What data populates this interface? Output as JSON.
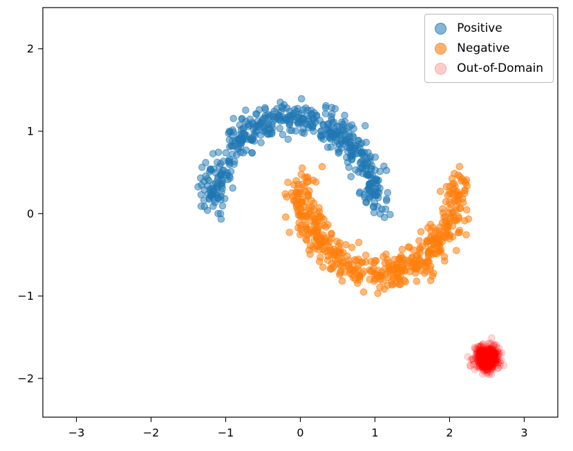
{
  "chart_data": {
    "type": "scatter",
    "title": "",
    "xlabel": "",
    "ylabel": "",
    "xlim": [
      -3.45,
      3.45
    ],
    "ylim": [
      -2.47,
      2.5
    ],
    "x_ticks": [
      -3,
      -2,
      -1,
      0,
      1,
      2,
      3
    ],
    "x_tick_labels": [
      "−3",
      "−2",
      "−1",
      "0",
      "1",
      "2",
      "3"
    ],
    "y_ticks": [
      -2,
      -1,
      0,
      1,
      2
    ],
    "y_tick_labels": [
      "−2",
      "−1",
      "0",
      "1",
      "2"
    ],
    "grid": false,
    "legend": {
      "position": "upper right"
    },
    "seed": 42,
    "marker_radius_px": 4.8,
    "axis_color": "#000000",
    "tick_label_color": "#000000",
    "series": [
      {
        "name": "Positive",
        "color": "#1f77b4",
        "alpha": 0.5,
        "marker": "circle",
        "n": 500,
        "generator": {
          "kind": "arc",
          "cx": -0.09,
          "cy": 0.08,
          "rx": 1.09,
          "ry": 1.08,
          "t0": 0,
          "t1": 3.14159265,
          "noise": 0.1
        },
        "description": "upper crescent from (-1.2, 0.1) to (1.0, 0.1), peak near (0, 1.15)"
      },
      {
        "name": "Negative",
        "color": "#ff7f0e",
        "alpha": 0.55,
        "marker": "circle",
        "n": 500,
        "generator": {
          "kind": "arc",
          "cx": 1.05,
          "cy": 0.42,
          "rx": 1.05,
          "ry": -1.15,
          "t0": 0,
          "t1": 3.14159265,
          "noise": 0.1
        },
        "description": "lower crescent from (0.0, 0.4) to (2.1, 0.4), trough near (1.05, -0.73)"
      },
      {
        "name": "Out-of-Domain",
        "color": "#ff0000",
        "alpha": 0.15,
        "marker": "circle",
        "n": 500,
        "generator": {
          "kind": "blob",
          "cx": 2.5,
          "cy": -1.75,
          "sx": 0.075,
          "sy": 0.075
        },
        "description": "tight gaussian blob centered near (2.5, -1.75)"
      }
    ]
  }
}
